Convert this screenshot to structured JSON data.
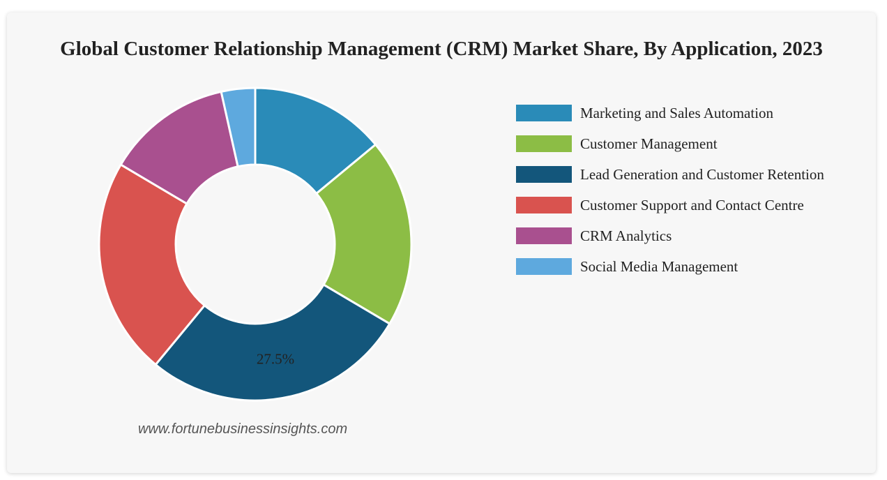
{
  "title": "Global Customer Relationship Management (CRM) Market Share, By Application, 2023",
  "source": "www.fortunebusinessinsights.com",
  "chart_data": {
    "type": "pie",
    "donut": true,
    "title": "Global Customer Relationship Management (CRM) Market Share, By Application, 2023",
    "legend_position": "right",
    "categories": [
      "Marketing and Sales Automation",
      "Customer Management",
      "Lead Generation and Customer Retention",
      "Customer Support and Contact Centre",
      "CRM Analytics",
      "Social Media Management"
    ],
    "values": [
      14,
      19.5,
      27.5,
      22.5,
      13,
      3.5
    ],
    "colors": [
      "#2a8bb8",
      "#8cbd45",
      "#13567b",
      "#d9534f",
      "#a9508f",
      "#5ea9de"
    ],
    "data_labels": [
      "",
      "",
      "27.5%",
      "",
      "",
      ""
    ]
  }
}
